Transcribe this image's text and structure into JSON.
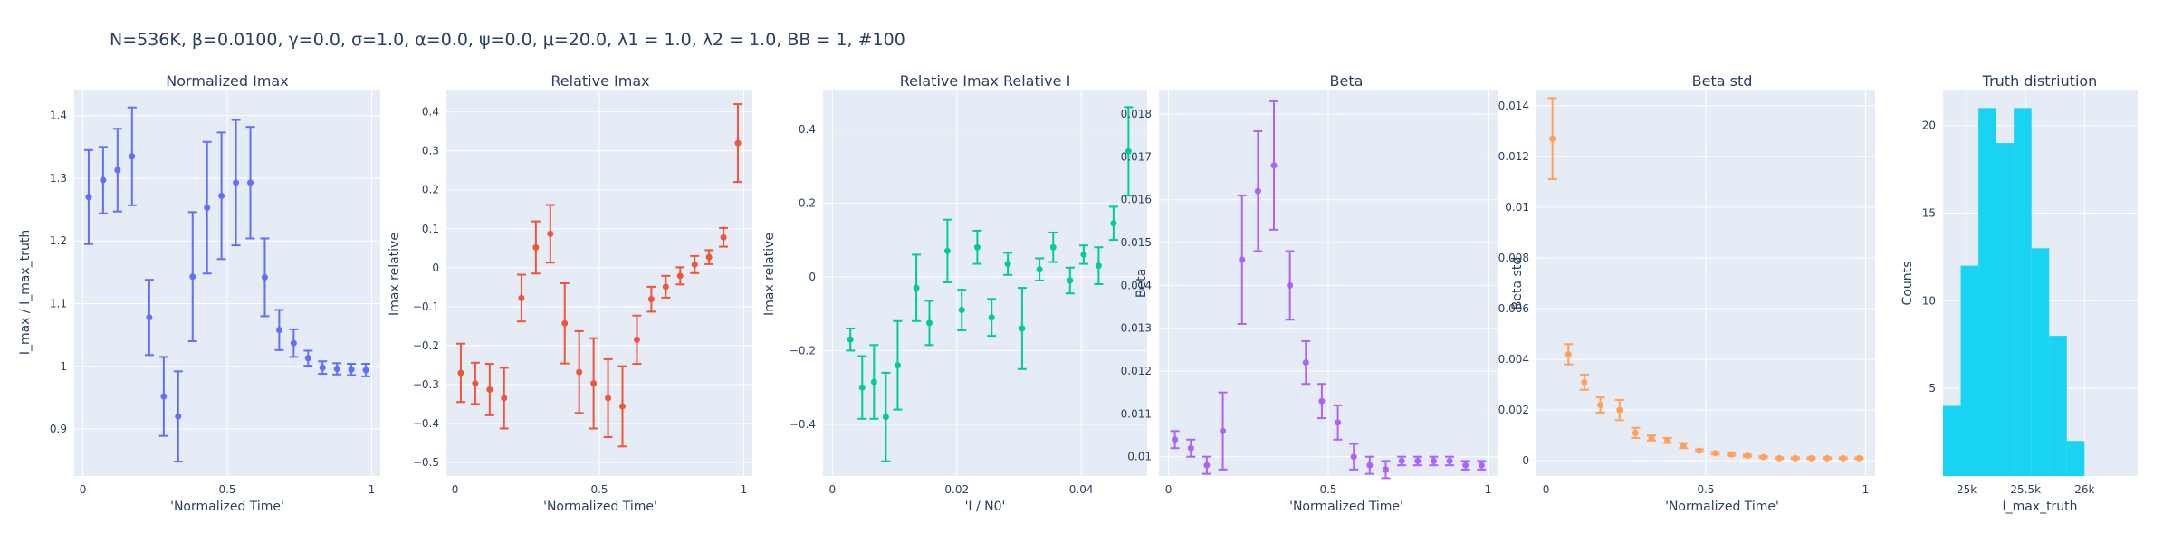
{
  "figure": {
    "title": "N=536K, β=0.0100, γ=0.0, σ=1.0,  α=0.0, ψ=0.0, μ=20.0, λ1 = 1.0, λ2 = 1.0, BB = 1, #100",
    "plot_bg": "#e5ecf6",
    "grid_color": "#ffffff"
  },
  "chart_data": [
    {
      "type": "scatter",
      "title": "Normalized Imax",
      "xlabel": "'Normalized Time'",
      "ylabel": "I_max / I_max_truth",
      "color": "#636efa",
      "xlim": [
        -0.03,
        1.03
      ],
      "ylim": [
        0.825,
        1.44
      ],
      "xticks": [
        0,
        0.5,
        1
      ],
      "xticklabels": [
        "0",
        "0.5",
        "1"
      ],
      "yticks": [
        0.9,
        1.0,
        1.1,
        1.2,
        1.3,
        1.4
      ],
      "yticklabels": [
        "0.9",
        "1",
        "1.1",
        "1.2",
        "1.3",
        "1.4"
      ],
      "x": [
        0.02,
        0.07,
        0.12,
        0.17,
        0.23,
        0.28,
        0.33,
        0.38,
        0.43,
        0.48,
        0.53,
        0.58,
        0.63,
        0.68,
        0.73,
        0.78,
        0.83,
        0.88,
        0.93,
        0.98
      ],
      "y": [
        1.27,
        1.297,
        1.313,
        1.335,
        1.078,
        0.952,
        0.92,
        1.143,
        1.253,
        1.272,
        1.293,
        1.293,
        1.142,
        1.058,
        1.037,
        1.013,
        0.998,
        0.996,
        0.995,
        0.994
      ],
      "err": [
        0.075,
        0.053,
        0.066,
        0.078,
        0.06,
        0.063,
        0.072,
        0.103,
        0.105,
        0.101,
        0.1,
        0.089,
        0.062,
        0.032,
        0.022,
        0.012,
        0.01,
        0.009,
        0.009,
        0.01
      ]
    },
    {
      "type": "scatter",
      "title": "Relative Imax",
      "xlabel": "'Normalized Time'",
      "ylabel": "Imax relative",
      "color": "#ef553b",
      "xlim": [
        -0.03,
        1.03
      ],
      "ylim": [
        -0.535,
        0.455
      ],
      "xticks": [
        0,
        0.5,
        1
      ],
      "xticklabels": [
        "0",
        "0.5",
        "1"
      ],
      "yticks": [
        -0.5,
        -0.4,
        -0.3,
        -0.2,
        -0.1,
        0,
        0.1,
        0.2,
        0.3,
        0.4
      ],
      "yticklabels": [
        "−0.5",
        "−0.4",
        "−0.3",
        "−0.2",
        "−0.1",
        "0",
        "0.1",
        "0.2",
        "0.3",
        "0.4"
      ],
      "x": [
        0.02,
        0.07,
        0.12,
        0.17,
        0.23,
        0.28,
        0.33,
        0.38,
        0.43,
        0.48,
        0.53,
        0.58,
        0.63,
        0.68,
        0.73,
        0.78,
        0.83,
        0.88,
        0.93,
        0.98
      ],
      "y": [
        -0.27,
        -0.297,
        -0.313,
        -0.335,
        -0.078,
        0.052,
        0.087,
        -0.143,
        -0.268,
        -0.297,
        -0.335,
        -0.356,
        -0.185,
        -0.081,
        -0.049,
        -0.021,
        0.008,
        0.027,
        0.078,
        0.32
      ],
      "err": [
        0.075,
        0.053,
        0.066,
        0.078,
        0.06,
        0.067,
        0.074,
        0.103,
        0.105,
        0.116,
        0.1,
        0.103,
        0.062,
        0.032,
        0.028,
        0.022,
        0.022,
        0.018,
        0.024,
        0.1
      ]
    },
    {
      "type": "scatter",
      "title": "Relative Imax Relative I",
      "xlabel": "'I / N0'",
      "ylabel": "Imax relative",
      "color": "#00cc96",
      "xlim": [
        -0.0015,
        0.0506
      ],
      "ylim": [
        -0.54,
        0.505
      ],
      "xticks": [
        0,
        0.02,
        0.04
      ],
      "xticklabels": [
        "0",
        "0.02",
        "0.04"
      ],
      "yticks": [
        -0.4,
        -0.2,
        0,
        0.2,
        0.4
      ],
      "yticklabels": [
        "−0.4",
        "−0.2",
        "0",
        "0.2",
        "0.4"
      ],
      "x": [
        0.0029,
        0.0048,
        0.0067,
        0.0086,
        0.0105,
        0.0135,
        0.0156,
        0.0185,
        0.0208,
        0.0233,
        0.0256,
        0.0282,
        0.0305,
        0.0333,
        0.0355,
        0.0382,
        0.0404,
        0.0428,
        0.0452,
        0.0476
      ],
      "y": [
        -0.17,
        -0.3,
        -0.285,
        -0.38,
        -0.24,
        -0.03,
        -0.125,
        0.07,
        -0.09,
        0.08,
        -0.11,
        0.035,
        -0.14,
        0.02,
        0.08,
        -0.01,
        0.06,
        0.03,
        0.145,
        0.34
      ],
      "err": [
        0.03,
        0.085,
        0.1,
        0.12,
        0.12,
        0.09,
        0.06,
        0.085,
        0.055,
        0.045,
        0.05,
        0.03,
        0.11,
        0.03,
        0.04,
        0.035,
        0.025,
        0.05,
        0.045,
        0.12
      ]
    },
    {
      "type": "scatter",
      "title": "Beta",
      "xlabel": "'Normalized Time'",
      "ylabel": "Beta",
      "color": "#ab63fa",
      "xlim": [
        -0.03,
        1.03
      ],
      "ylim": [
        0.00955,
        0.01855
      ],
      "xticks": [
        0,
        0.5,
        1
      ],
      "xticklabels": [
        "0",
        "0.5",
        "1"
      ],
      "yticks": [
        0.01,
        0.011,
        0.012,
        0.013,
        0.014,
        0.015,
        0.016,
        0.017,
        0.018
      ],
      "yticklabels": [
        "0.01",
        "0.011",
        "0.012",
        "0.013",
        "0.014",
        "0.015",
        "0.016",
        "0.017",
        "0.018"
      ],
      "x": [
        0.02,
        0.07,
        0.12,
        0.17,
        0.23,
        0.28,
        0.33,
        0.38,
        0.43,
        0.48,
        0.53,
        0.58,
        0.63,
        0.68,
        0.73,
        0.78,
        0.83,
        0.88,
        0.93,
        0.98
      ],
      "y": [
        0.0104,
        0.0102,
        0.0098,
        0.0106,
        0.0146,
        0.0162,
        0.0168,
        0.014,
        0.0122,
        0.0113,
        0.0108,
        0.01,
        0.0098,
        0.0097,
        0.0099,
        0.0099,
        0.0099,
        0.0099,
        0.0098,
        0.0098
      ],
      "err": [
        0.0002,
        0.0002,
        0.0002,
        0.0009,
        0.0015,
        0.0014,
        0.0015,
        0.0008,
        0.0005,
        0.0004,
        0.0004,
        0.0003,
        0.0002,
        0.0002,
        0.0001,
        0.0001,
        0.0001,
        0.0001,
        0.0001,
        0.0001
      ]
    },
    {
      "type": "scatter",
      "title": "Beta std",
      "xlabel": "'Normalized Time'",
      "ylabel": "Beta std",
      "color": "#ffa15a",
      "xlim": [
        -0.03,
        1.03
      ],
      "ylim": [
        -0.0006,
        0.0146
      ],
      "xticks": [
        0,
        0.5,
        1
      ],
      "xticklabels": [
        "0",
        "0.5",
        "1"
      ],
      "yticks": [
        0,
        0.002,
        0.004,
        0.006,
        0.008,
        0.01,
        0.012,
        0.014
      ],
      "yticklabels": [
        "0",
        "0.002",
        "0.004",
        "0.006",
        "0.008",
        "0.01",
        "0.012",
        "0.014"
      ],
      "x": [
        0.02,
        0.07,
        0.12,
        0.17,
        0.23,
        0.28,
        0.33,
        0.38,
        0.43,
        0.48,
        0.53,
        0.58,
        0.63,
        0.68,
        0.73,
        0.78,
        0.83,
        0.88,
        0.93,
        0.98
      ],
      "y": [
        0.0127,
        0.0042,
        0.0031,
        0.0022,
        0.002,
        0.0011,
        0.0009,
        0.0008,
        0.0006,
        0.0004,
        0.0003,
        0.00025,
        0.0002,
        0.00015,
        0.0001,
        0.0001,
        0.0001,
        0.0001,
        0.0001,
        0.0001
      ],
      "err": [
        0.0016,
        0.0004,
        0.0003,
        0.0003,
        0.0004,
        0.0002,
        0.0001,
        0.0001,
        0.0001,
        5e-05,
        5e-05,
        5e-05,
        4e-05,
        3e-05,
        3e-05,
        3e-05,
        3e-05,
        3e-05,
        3e-05,
        3e-05
      ]
    },
    {
      "type": "bar",
      "title": "Truth distriution",
      "xlabel": "I_max_truth",
      "ylabel": "Counts",
      "color": "#19d3f3",
      "xlim": [
        24800,
        26450
      ],
      "ylim": [
        0,
        22
      ],
      "xticks": [
        25000,
        25500,
        26000
      ],
      "xticklabels": [
        "25k",
        "25.5k",
        "26k"
      ],
      "yticks": [
        5,
        10,
        15,
        20
      ],
      "yticklabels": [
        "5",
        "10",
        "15",
        "20"
      ],
      "bins_start": 24800,
      "bin_width": 150,
      "values": [
        4,
        12,
        21,
        19,
        21,
        13,
        8,
        2
      ]
    }
  ]
}
